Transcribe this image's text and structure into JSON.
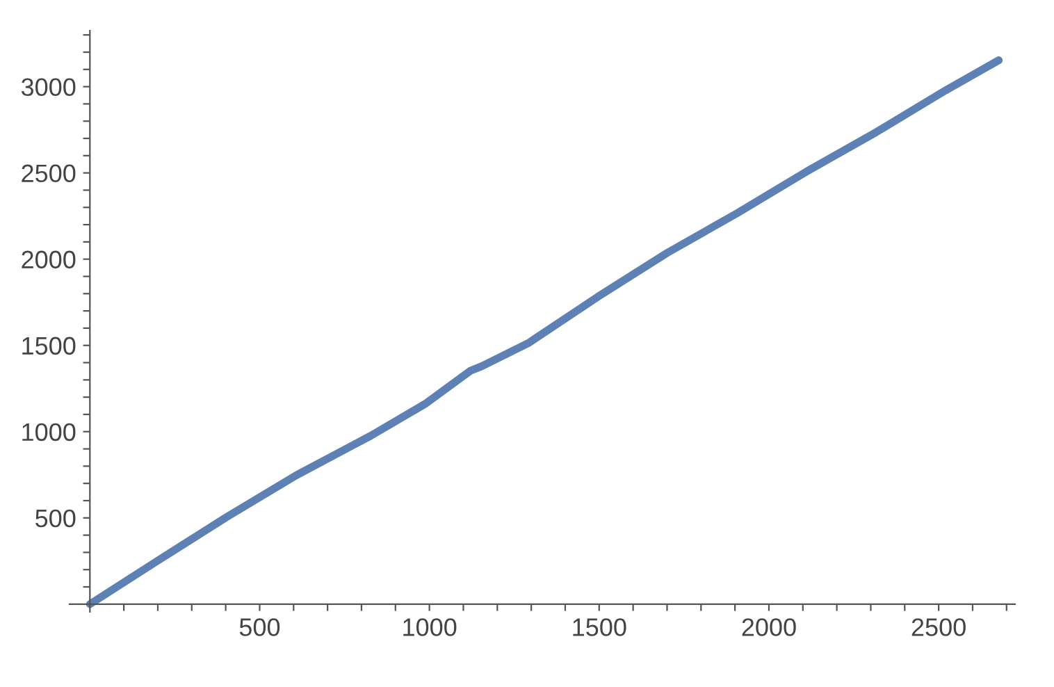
{
  "chart_data": {
    "type": "line",
    "color": "#5e81b5",
    "marker": "none",
    "line_style": "solid",
    "grid": false,
    "legend": false,
    "x": [
      0,
      198,
      403,
      608,
      827,
      990,
      1120,
      1155,
      1291,
      1496,
      1701,
      1906,
      2111,
      2316,
      2520,
      2677
    ],
    "values": [
      0,
      250,
      505,
      747,
      976,
      1164,
      1352,
      1380,
      1513,
      1782,
      2037,
      2266,
      2508,
      2736,
      2978,
      3153
    ],
    "xlim": [
      -60,
      2725
    ],
    "ylim": [
      -45,
      3325
    ],
    "xticks": [
      {
        "value": 100,
        "label": null
      },
      {
        "value": 200,
        "label": null
      },
      {
        "value": 300,
        "label": null
      },
      {
        "value": 400,
        "label": null
      },
      500,
      {
        "value": 600,
        "label": null
      },
      {
        "value": 700,
        "label": null
      },
      {
        "value": 800,
        "label": null
      },
      {
        "value": 900,
        "label": null
      },
      1000,
      {
        "value": 1100,
        "label": null
      },
      {
        "value": 1200,
        "label": null
      },
      {
        "value": 1300,
        "label": null
      },
      {
        "value": 1400,
        "label": null
      },
      1500,
      {
        "value": 1600,
        "label": null
      },
      {
        "value": 1700,
        "label": null
      },
      {
        "value": 1800,
        "label": null
      },
      {
        "value": 1900,
        "label": null
      },
      2000,
      {
        "value": 2100,
        "label": null
      },
      {
        "value": 2200,
        "label": null
      },
      {
        "value": 2300,
        "label": null
      },
      {
        "value": 2400,
        "label": null
      },
      2500,
      {
        "value": 2600,
        "label": null
      },
      {
        "value": 2700,
        "label": null
      }
    ],
    "yticks": [
      {
        "value": 100,
        "label": null
      },
      {
        "value": 200,
        "label": null
      },
      {
        "value": 300,
        "label": null
      },
      {
        "value": 400,
        "label": null
      },
      500,
      {
        "value": 600,
        "label": null
      },
      {
        "value": 700,
        "label": null
      },
      {
        "value": 800,
        "label": null
      },
      {
        "value": 900,
        "label": null
      },
      1000,
      {
        "value": 1100,
        "label": null
      },
      {
        "value": 1200,
        "label": null
      },
      {
        "value": 1300,
        "label": null
      },
      {
        "value": 1400,
        "label": null
      },
      1500,
      {
        "value": 1600,
        "label": null
      },
      {
        "value": 1700,
        "label": null
      },
      {
        "value": 1800,
        "label": null
      },
      {
        "value": 1900,
        "label": null
      },
      2000,
      {
        "value": 2100,
        "label": null
      },
      {
        "value": 2200,
        "label": null
      },
      {
        "value": 2300,
        "label": null
      },
      {
        "value": 2400,
        "label": null
      },
      2500,
      {
        "value": 2600,
        "label": null
      },
      {
        "value": 2700,
        "label": null
      },
      {
        "value": 2800,
        "label": null
      },
      {
        "value": 2900,
        "label": null
      },
      3000,
      {
        "value": 3100,
        "label": null
      },
      {
        "value": 3200,
        "label": null
      },
      {
        "value": 3300,
        "label": null
      }
    ]
  }
}
